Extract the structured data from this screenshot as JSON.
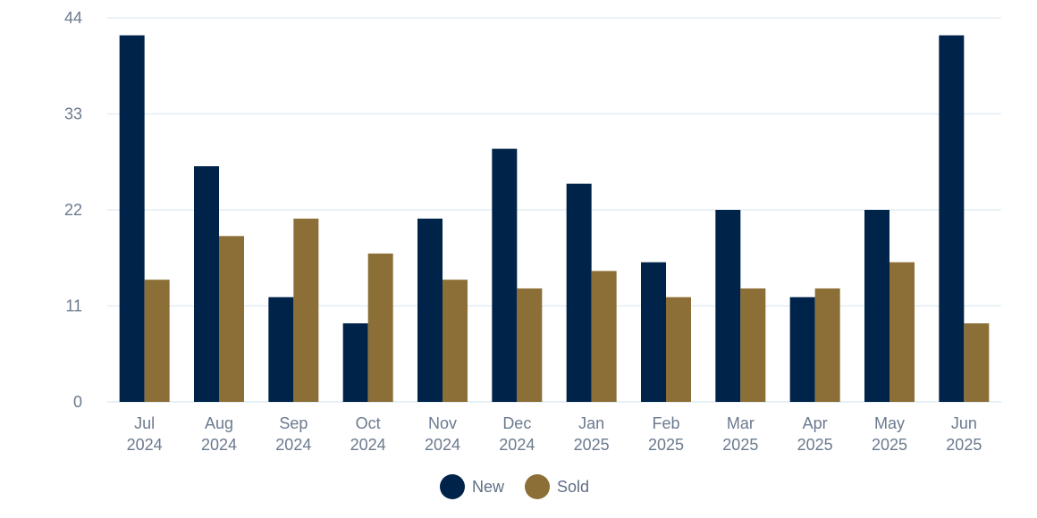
{
  "chart_data": {
    "type": "bar",
    "title": "",
    "xlabel": "",
    "ylabel": "",
    "categories": [
      [
        "Jul",
        "2024"
      ],
      [
        "Aug",
        "2024"
      ],
      [
        "Sep",
        "2024"
      ],
      [
        "Oct",
        "2024"
      ],
      [
        "Nov",
        "2024"
      ],
      [
        "Dec",
        "2024"
      ],
      [
        "Jan",
        "2025"
      ],
      [
        "Feb",
        "2025"
      ],
      [
        "Mar",
        "2025"
      ],
      [
        "Apr",
        "2025"
      ],
      [
        "May",
        "2025"
      ],
      [
        "Jun",
        "2025"
      ]
    ],
    "series": [
      {
        "name": "New",
        "color": "#00234a",
        "values": [
          42,
          27,
          12,
          9,
          21,
          29,
          25,
          16,
          22,
          12,
          22,
          42
        ]
      },
      {
        "name": "Sold",
        "color": "#8c6f36",
        "values": [
          14,
          19,
          21,
          17,
          14,
          13,
          15,
          12,
          13,
          13,
          16,
          9
        ]
      }
    ],
    "ylim": [
      0,
      44
    ],
    "yticks": [
      0,
      11,
      22,
      33,
      44
    ],
    "grid": true,
    "legend": "bottom-center",
    "gridline_color": "#e3eef4"
  }
}
